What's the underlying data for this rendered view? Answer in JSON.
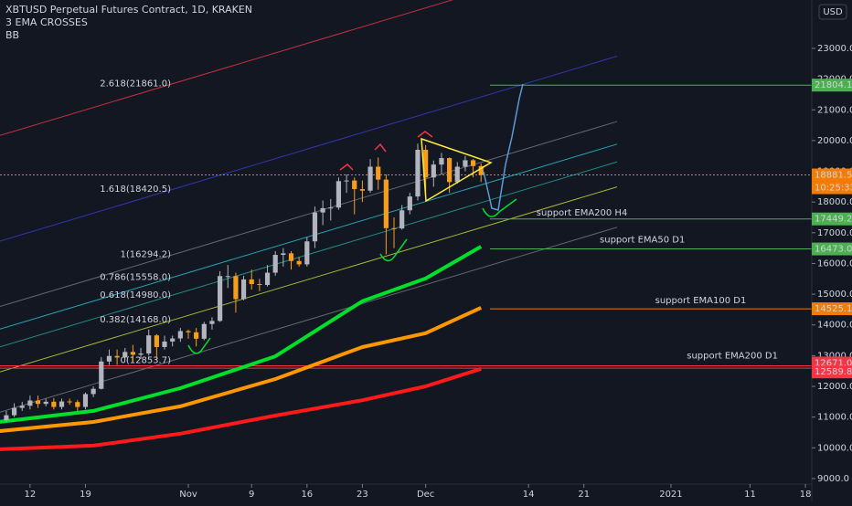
{
  "chart_data": {
    "type": "candlestick",
    "title": "XBTUSD Perpetual Futures Contract, 1D, KRAKEN",
    "indicators": [
      "3 EMA CROSSES",
      "BB"
    ],
    "currency": "USD",
    "up_color": "#b2b5be",
    "down_color": "#f89d1b",
    "xlim": [
      -3.8,
      98.8
    ],
    "ylim": [
      8820,
      24575
    ],
    "xticks": [
      {
        "value": 0,
        "label": "12"
      },
      {
        "value": 7,
        "label": "19"
      },
      {
        "value": 20,
        "label": "Nov"
      },
      {
        "value": 28,
        "label": "9"
      },
      {
        "value": 35,
        "label": "16"
      },
      {
        "value": 42,
        "label": "23"
      },
      {
        "value": 50,
        "label": "Dec"
      },
      {
        "value": 63,
        "label": "14"
      },
      {
        "value": 70,
        "label": "21"
      },
      {
        "value": 81,
        "label": "2021"
      },
      {
        "value": 91,
        "label": "11"
      },
      {
        "value": 98,
        "label": "18"
      }
    ],
    "yticks": [
      {
        "value": 9000,
        "label": "9000.0"
      },
      {
        "value": 10000,
        "label": "10000.0"
      },
      {
        "value": 11000,
        "label": "11000.0"
      },
      {
        "value": 12000,
        "label": "12000.0"
      },
      {
        "value": 13000,
        "label": "13000.0"
      },
      {
        "value": 14000,
        "label": "14000.0"
      },
      {
        "value": 15000,
        "label": "15000.0"
      },
      {
        "value": 16000,
        "label": "16000.0"
      },
      {
        "value": 17000,
        "label": "17000.0"
      },
      {
        "value": 18000,
        "label": "18000.0"
      },
      {
        "value": 19000,
        "label": "19000.0"
      },
      {
        "value": 20000,
        "label": "20000.0"
      },
      {
        "value": 21000,
        "label": "21000.0"
      },
      {
        "value": 22000,
        "label": "22000.0"
      },
      {
        "value": 23000,
        "label": "23000.0"
      }
    ],
    "candles": {
      "x": [
        -3,
        -2,
        -1,
        0,
        1,
        2,
        3,
        4,
        5,
        6,
        7,
        8,
        9,
        10,
        11,
        12,
        13,
        14,
        15,
        16,
        17,
        18,
        19,
        20,
        21,
        22,
        23,
        24,
        25,
        26,
        27,
        28,
        29,
        30,
        31,
        32,
        33,
        34,
        35,
        36,
        37,
        38,
        39,
        40,
        41,
        42,
        43,
        44,
        45,
        46,
        47,
        48,
        49,
        50,
        51,
        52,
        53,
        54,
        55,
        56,
        57
      ],
      "open": [
        10900,
        11060,
        11300,
        11370,
        11540,
        11430,
        11500,
        11330,
        11510,
        11490,
        11330,
        11750,
        11920,
        12810,
        12990,
        12940,
        13120,
        13030,
        13070,
        13660,
        13280,
        13460,
        13560,
        13800,
        13760,
        13550,
        14030,
        14130,
        15590,
        15590,
        14840,
        15480,
        15330,
        15300,
        15700,
        16280,
        16330,
        16080,
        15970,
        16720,
        17660,
        17800,
        17820,
        18680,
        18700,
        18420,
        18370,
        19150,
        18730,
        17150,
        17140,
        17730,
        18180,
        19700,
        18800,
        19220,
        19430,
        18650,
        19150,
        19360,
        19170
      ],
      "high": [
        11200,
        11450,
        11500,
        11700,
        11700,
        11600,
        11620,
        11600,
        11600,
        11560,
        11800,
        12000,
        12950,
        13200,
        13200,
        13250,
        13350,
        13250,
        13850,
        13700,
        13650,
        13650,
        13900,
        13850,
        13900,
        14100,
        14250,
        15750,
        15950,
        15700,
        15600,
        15800,
        15500,
        15950,
        16400,
        16500,
        16400,
        16200,
        16850,
        17850,
        18050,
        18100,
        18800,
        18900,
        18800,
        18700,
        19400,
        19450,
        18900,
        17500,
        17900,
        18300,
        19900,
        19850,
        19350,
        19600,
        19450,
        19300,
        19500,
        19400,
        19250
      ],
      "low": [
        10850,
        11000,
        11200,
        11250,
        11300,
        11350,
        11250,
        11250,
        11400,
        11200,
        11250,
        11650,
        11900,
        12700,
        12700,
        12900,
        12800,
        12900,
        13000,
        12900,
        13200,
        13300,
        13450,
        13550,
        13300,
        13500,
        13850,
        14100,
        15200,
        14400,
        14800,
        15150,
        15100,
        15250,
        15600,
        15900,
        15800,
        15900,
        15900,
        16500,
        17250,
        17400,
        17750,
        18300,
        17600,
        18000,
        18300,
        18400,
        16300,
        16500,
        17100,
        17600,
        18050,
        18200,
        18500,
        18900,
        18300,
        18600,
        19000,
        18800,
        18650
      ],
      "close": [
        11060,
        11300,
        11370,
        11540,
        11430,
        11500,
        11330,
        11510,
        11490,
        11330,
        11750,
        11920,
        12810,
        12990,
        12940,
        13120,
        13030,
        13070,
        13660,
        13280,
        13460,
        13560,
        13800,
        13760,
        13550,
        14030,
        14130,
        15590,
        15590,
        14840,
        15480,
        15330,
        15300,
        15700,
        16280,
        16330,
        16080,
        15970,
        16720,
        17660,
        17800,
        17820,
        18680,
        18700,
        18420,
        18370,
        19150,
        18730,
        17150,
        17140,
        17730,
        18180,
        19700,
        18800,
        19220,
        19430,
        18650,
        19150,
        19360,
        19170,
        18880
      ]
    },
    "series": [
      {
        "color": "#00e02b",
        "width": 4,
        "x": [
          -4,
          8,
          19,
          31,
          42,
          50,
          57
        ],
        "values": [
          10840,
          11200,
          11940,
          12980,
          14770,
          15510,
          16550
        ]
      },
      {
        "color": "#ff9800",
        "width": 4,
        "x": [
          -4,
          8,
          19,
          31,
          42,
          50,
          57
        ],
        "values": [
          10540,
          10840,
          11350,
          12240,
          13280,
          13730,
          14560
        ]
      },
      {
        "color": "#ff1a1a",
        "width": 4,
        "x": [
          -4,
          8,
          19,
          31,
          42,
          50,
          57
        ],
        "values": [
          9950,
          10070,
          10460,
          11050,
          11550,
          12000,
          12570
        ]
      }
    ],
    "fib_levels": [
      {
        "value": 21861.0,
        "label": "2.618(21861.0)",
        "color": "#f23645"
      },
      {
        "value": 18420.5,
        "label": "1.618(18420.5)",
        "color": "#3d3dd8"
      },
      {
        "value": 16294.2,
        "label": "1(16294.2)",
        "color": "#787b86"
      },
      {
        "value": 15558.0,
        "label": "0.786(15558.0)",
        "color": "#26c6da"
      },
      {
        "value": 14980.0,
        "label": "0.618(14980.0)",
        "color": "#26a69a"
      },
      {
        "value": 14168.0,
        "label": "0.382(14168.0)",
        "color": "#cddc39"
      },
      {
        "value": 12853.7,
        "label": "0(12853.7)",
        "color": "#787b86"
      }
    ],
    "price_lines": [
      {
        "value": 21804.1,
        "label": "21804.1",
        "color": "#4caf50",
        "style": "solid"
      },
      {
        "value": 18881.5,
        "label": "18881.5",
        "color": "#f57c00",
        "style": "dashed"
      },
      {
        "value": 17449.2,
        "label": "17449.2",
        "color": "#4caf50",
        "style": "solid"
      },
      {
        "value": 16473.0,
        "label": "16473.0",
        "color": "#4caf50",
        "style": "solid"
      },
      {
        "value": 14525.1,
        "label": "14525.1",
        "color": "#f57c00",
        "style": "solid"
      },
      {
        "value": 12671.0,
        "label": "12671.0",
        "color": "#f23645",
        "style": "solid"
      },
      {
        "value": 12589.8,
        "label": "12589.8",
        "color": "#f23645",
        "style": "solid"
      }
    ],
    "countdown": "10:25:33",
    "annotations": [
      {
        "text": "support EMA200 H4",
        "x": 64,
        "y": 17650
      },
      {
        "text": "support EMA50 D1",
        "x": 72,
        "y": 16770
      },
      {
        "text": "support EMA100 D1",
        "x": 79,
        "y": 14800
      },
      {
        "text": "support EMA200 D1",
        "x": 83,
        "y": 12990
      }
    ]
  }
}
